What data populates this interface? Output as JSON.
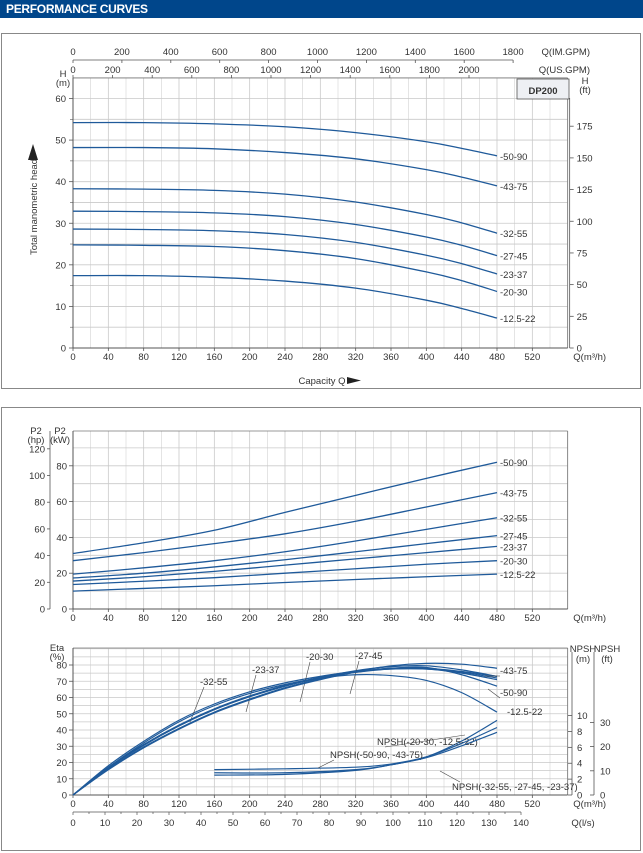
{
  "header": {
    "title": "PERFORMANCE CURVES"
  },
  "colors": {
    "header": "#00468b",
    "curve": "#1f5a9a",
    "grid": "#c9c9c9"
  },
  "chart_data": [
    {
      "type": "line",
      "title": "DP200",
      "ylabel": "Total manometric head",
      "xlabel": "Capacity Q",
      "x_unit": "Q(m³/h)",
      "y_unit_left": [
        "H",
        "(m)"
      ],
      "y_unit_right": [
        "H",
        "(ft)"
      ],
      "top_axis_im": {
        "label": "Q(IM.GPM)",
        "ticks": [
          0,
          200,
          400,
          600,
          800,
          1000,
          1200,
          1400,
          1600,
          1800
        ]
      },
      "top_axis_us": {
        "label": "Q(US.GPM)",
        "ticks": [
          0,
          200,
          400,
          600,
          800,
          1000,
          1200,
          1400,
          1600,
          1800,
          2000
        ]
      },
      "xlim": [
        0,
        560
      ],
      "ylim": [
        0,
        65
      ],
      "x_ticks": [
        0,
        40,
        80,
        120,
        160,
        200,
        240,
        280,
        320,
        360,
        400,
        440,
        480,
        520
      ],
      "y_ticks": [
        0,
        10,
        20,
        30,
        40,
        50,
        60
      ],
      "y_ticks_right": [
        0,
        25,
        50,
        75,
        100,
        125,
        150,
        175
      ],
      "x": [
        0,
        80,
        160,
        240,
        320,
        400,
        440,
        480
      ],
      "series": [
        {
          "name": "-50-90",
          "values": [
            54.2,
            54.2,
            53.9,
            53.2,
            51.8,
            49.6,
            48.0,
            46.2
          ]
        },
        {
          "name": "-43-75",
          "values": [
            48.2,
            48.2,
            47.9,
            47.0,
            45.5,
            42.9,
            41.1,
            39.0
          ]
        },
        {
          "name": "-32-55",
          "values": [
            38.3,
            38.2,
            37.9,
            37.0,
            35.1,
            32.1,
            30.1,
            27.6
          ]
        },
        {
          "name": "-27-45",
          "values": [
            32.9,
            32.8,
            32.5,
            31.6,
            29.7,
            26.7,
            24.7,
            22.2
          ]
        },
        {
          "name": "-23-37",
          "values": [
            28.6,
            28.5,
            28.2,
            27.3,
            25.4,
            22.3,
            20.3,
            17.8
          ]
        },
        {
          "name": "-20-30",
          "values": [
            24.8,
            24.7,
            24.4,
            23.4,
            21.5,
            18.3,
            16.2,
            13.6
          ]
        },
        {
          "name": "-12.5-22",
          "values": [
            17.4,
            17.4,
            17.0,
            16.1,
            14.4,
            11.5,
            9.5,
            7.2
          ]
        }
      ]
    },
    {
      "type": "line",
      "title": "",
      "x_unit": "Q(m³/h)",
      "y_unit_left_hp": [
        "P2",
        "(hp)"
      ],
      "y_unit_left_kw": [
        "P2",
        "(kW)"
      ],
      "xlim": [
        0,
        560
      ],
      "ylim": [
        0,
        100
      ],
      "x_ticks": [
        0,
        40,
        80,
        120,
        160,
        200,
        240,
        280,
        320,
        360,
        400,
        440,
        480,
        520
      ],
      "y_ticks_kw": [
        0,
        20,
        40,
        60,
        80
      ],
      "y_ticks_hp": [
        0,
        20,
        40,
        60,
        80,
        100,
        120
      ],
      "x": [
        0,
        80,
        160,
        240,
        320,
        400,
        480
      ],
      "series": [
        {
          "name": "-50-90",
          "values": [
            31,
            37,
            44,
            54,
            63.5,
            73,
            82
          ]
        },
        {
          "name": "-43-75",
          "values": [
            27,
            31.5,
            36.5,
            42,
            49,
            57,
            65
          ]
        },
        {
          "name": "-32-55",
          "values": [
            19.5,
            23,
            27,
            32,
            38,
            44.5,
            51
          ]
        },
        {
          "name": "-27-45",
          "values": [
            17.3,
            20,
            23.5,
            27.5,
            32,
            36.5,
            41
          ]
        },
        {
          "name": "-23-37",
          "values": [
            15.6,
            18,
            21,
            24.5,
            28,
            31.5,
            35
          ]
        },
        {
          "name": "-20-30",
          "values": [
            13.7,
            15.5,
            17.5,
            20,
            22.5,
            25,
            27
          ]
        },
        {
          "name": "-12.5-22",
          "values": [
            10,
            11.5,
            13,
            14.8,
            16.5,
            18,
            19.5
          ]
        }
      ]
    },
    {
      "type": "line",
      "title": "",
      "x_unit": "Q(m³/h)",
      "x2_unit": "Q(l/s)",
      "y_unit_left": [
        "Eta",
        "(%)"
      ],
      "y_unit_npsh_m": [
        "NPSH",
        "(m)"
      ],
      "y_unit_npsh_ft": [
        "NPSH",
        "(ft)"
      ],
      "xlim": [
        0,
        560
      ],
      "ylim": [
        0,
        90
      ],
      "x_ticks": [
        0,
        40,
        80,
        120,
        160,
        200,
        240,
        280,
        320,
        360,
        400,
        440,
        480,
        520
      ],
      "x2_ticks": [
        0,
        10,
        20,
        30,
        40,
        50,
        60,
        70,
        80,
        90,
        100,
        110,
        120,
        130,
        140
      ],
      "y_ticks": [
        0,
        10,
        20,
        30,
        40,
        50,
        60,
        70,
        80
      ],
      "npsh_m_ticks": [
        0,
        2,
        4,
        6,
        8,
        10
      ],
      "npsh_ft_ticks": [
        0,
        10,
        20,
        30
      ],
      "x": [
        0,
        40,
        80,
        120,
        160,
        200,
        240,
        280,
        320,
        360,
        400,
        440,
        480
      ],
      "eta_series": [
        {
          "name": "-32-55",
          "values": [
            0,
            18,
            33,
            46,
            56,
            63.5,
            69,
            73,
            76,
            77.5,
            77.5,
            75,
            71
          ]
        },
        {
          "name": "-23-37",
          "values": [
            0,
            17,
            31,
            43,
            53,
            60.5,
            67,
            72,
            75.5,
            77.5,
            77.5,
            75.5,
            72
          ]
        },
        {
          "name": "-20-30",
          "values": [
            0,
            17,
            31,
            43,
            53,
            61,
            67.5,
            72.5,
            76,
            78,
            78,
            76,
            73
          ]
        },
        {
          "name": "-27-45",
          "values": [
            0,
            16.5,
            30.5,
            42.5,
            52.5,
            60.5,
            67,
            72.5,
            76.5,
            79,
            79.5,
            77,
            73
          ]
        },
        {
          "name": "-43-75",
          "values": [
            0,
            16,
            29.5,
            41,
            51,
            59,
            66,
            71.5,
            76,
            79.5,
            81,
            80.5,
            78
          ]
        },
        {
          "name": "-50-90",
          "values": [
            0,
            15.5,
            29,
            40.5,
            50.5,
            58.5,
            65.5,
            71,
            75.5,
            78,
            78.5,
            74,
            67
          ]
        },
        {
          "name": "-12.5-22",
          "values": [
            0,
            17,
            32,
            45,
            55,
            62.5,
            68,
            72,
            74,
            73.5,
            70.5,
            63,
            51
          ]
        }
      ],
      "npsh_x": [
        160,
        240,
        320,
        360,
        400,
        440,
        480
      ],
      "npsh_series": [
        {
          "name": "NPSH(-20-30, -12.5-22)",
          "values": [
            2.8,
            2.8,
            3.2,
            3.8,
            4.8,
            6.8,
            9.4
          ]
        },
        {
          "name": "NPSH(-50-90, -43-75)",
          "values": [
            3.2,
            3.3,
            3.5,
            3.9,
            4.8,
            6.5,
            8.5
          ]
        },
        {
          "name": "NPSH(-32-55, -27-45, -23-37)",
          "values": [
            2.5,
            2.6,
            3.1,
            3.8,
            4.7,
            6.2,
            7.9
          ]
        }
      ]
    }
  ]
}
